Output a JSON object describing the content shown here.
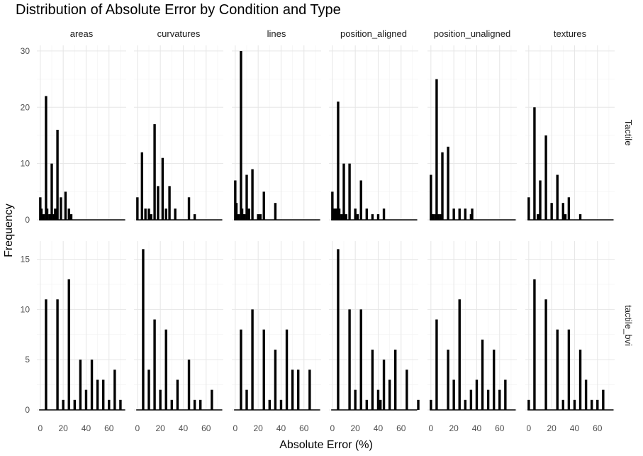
{
  "chart_data": {
    "type": "bar",
    "title": "Distribution of Absolute Error by Condition and Type",
    "xlabel": "Absolute Error (%)",
    "ylabel": "Frequency",
    "facet_columns": [
      "areas",
      "curvatures",
      "lines",
      "position_aligned",
      "position_unaligned",
      "textures"
    ],
    "facet_rows": [
      {
        "name": "Tactile",
        "ylim": [
          0,
          31
        ],
        "yticks": [
          0,
          10,
          20,
          30
        ]
      },
      {
        "name": "tactile_bvi",
        "ylim": [
          0,
          16.8
        ],
        "yticks": [
          0,
          5,
          10,
          15
        ]
      }
    ],
    "xlim": [
      -3,
      75
    ],
    "xticks": [
      0,
      20,
      40,
      60
    ],
    "grid": true,
    "panels": {
      "Tactile": {
        "areas": [
          [
            0,
            4
          ],
          [
            1,
            2
          ],
          [
            3,
            1
          ],
          [
            5,
            22
          ],
          [
            6,
            2
          ],
          [
            8,
            1
          ],
          [
            9,
            1
          ],
          [
            10,
            10
          ],
          [
            12,
            1
          ],
          [
            13,
            2
          ],
          [
            15,
            16
          ],
          [
            18,
            4
          ],
          [
            22,
            5
          ],
          [
            25,
            2
          ],
          [
            27,
            1
          ]
        ],
        "curvatures": [
          [
            0,
            4
          ],
          [
            4,
            12
          ],
          [
            7,
            2
          ],
          [
            10,
            2
          ],
          [
            12,
            1
          ],
          [
            15,
            17
          ],
          [
            18,
            6
          ],
          [
            22,
            11
          ],
          [
            25,
            2
          ],
          [
            28,
            6
          ],
          [
            33,
            2
          ],
          [
            45,
            4
          ],
          [
            50,
            1
          ]
        ],
        "lines": [
          [
            0,
            7
          ],
          [
            1,
            3
          ],
          [
            3,
            1
          ],
          [
            5,
            30
          ],
          [
            6,
            2
          ],
          [
            7,
            1
          ],
          [
            8,
            1
          ],
          [
            10,
            8
          ],
          [
            12,
            2
          ],
          [
            15,
            9
          ],
          [
            20,
            1
          ],
          [
            22,
            1
          ],
          [
            25,
            5
          ],
          [
            35,
            3
          ]
        ],
        "position_aligned": [
          [
            0,
            5
          ],
          [
            1,
            2
          ],
          [
            2,
            2
          ],
          [
            3,
            2
          ],
          [
            4,
            2
          ],
          [
            5,
            21
          ],
          [
            6,
            2
          ],
          [
            8,
            1
          ],
          [
            10,
            10
          ],
          [
            12,
            1
          ],
          [
            15,
            10
          ],
          [
            20,
            2
          ],
          [
            22,
            1
          ],
          [
            25,
            7
          ],
          [
            30,
            2
          ],
          [
            35,
            1
          ],
          [
            40,
            1
          ],
          [
            45,
            2
          ]
        ],
        "position_unaligned": [
          [
            0,
            8
          ],
          [
            1,
            1
          ],
          [
            2,
            1
          ],
          [
            4,
            1
          ],
          [
            5,
            25
          ],
          [
            6,
            1
          ],
          [
            8,
            1
          ],
          [
            10,
            12
          ],
          [
            15,
            13
          ],
          [
            20,
            2
          ],
          [
            25,
            2
          ],
          [
            30,
            2
          ],
          [
            35,
            1
          ],
          [
            36,
            2
          ]
        ],
        "textures": [
          [
            0,
            4
          ],
          [
            5,
            20
          ],
          [
            8,
            1
          ],
          [
            10,
            7
          ],
          [
            15,
            15
          ],
          [
            20,
            3
          ],
          [
            25,
            8
          ],
          [
            30,
            3
          ],
          [
            32,
            1
          ],
          [
            35,
            4
          ],
          [
            45,
            1
          ]
        ]
      },
      "tactile_bvi": {
        "areas": [
          [
            5,
            11
          ],
          [
            15,
            11
          ],
          [
            20,
            1
          ],
          [
            25,
            13
          ],
          [
            30,
            1
          ],
          [
            35,
            5
          ],
          [
            40,
            2
          ],
          [
            45,
            5
          ],
          [
            50,
            3
          ],
          [
            55,
            3
          ],
          [
            60,
            1
          ],
          [
            65,
            4
          ],
          [
            70,
            1
          ]
        ],
        "curvatures": [
          [
            5,
            16
          ],
          [
            10,
            4
          ],
          [
            15,
            9
          ],
          [
            20,
            2
          ],
          [
            25,
            8
          ],
          [
            30,
            1
          ],
          [
            35,
            3
          ],
          [
            45,
            5
          ],
          [
            50,
            1
          ],
          [
            55,
            1
          ],
          [
            65,
            2
          ]
        ],
        "lines": [
          [
            5,
            8
          ],
          [
            10,
            2
          ],
          [
            15,
            10
          ],
          [
            25,
            8
          ],
          [
            30,
            1
          ],
          [
            35,
            6
          ],
          [
            40,
            1
          ],
          [
            45,
            8
          ],
          [
            50,
            4
          ],
          [
            55,
            4
          ],
          [
            65,
            4
          ]
        ],
        "position_aligned": [
          [
            5,
            16
          ],
          [
            15,
            10
          ],
          [
            20,
            2
          ],
          [
            25,
            10
          ],
          [
            30,
            1
          ],
          [
            35,
            6
          ],
          [
            40,
            2
          ],
          [
            42,
            1
          ],
          [
            45,
            5
          ],
          [
            50,
            3
          ],
          [
            55,
            6
          ],
          [
            65,
            4
          ],
          [
            75,
            1
          ]
        ],
        "position_unaligned": [
          [
            0,
            1
          ],
          [
            5,
            9
          ],
          [
            15,
            6
          ],
          [
            20,
            3
          ],
          [
            25,
            11
          ],
          [
            30,
            1
          ],
          [
            35,
            2
          ],
          [
            40,
            3
          ],
          [
            45,
            7
          ],
          [
            50,
            2
          ],
          [
            55,
            6
          ],
          [
            60,
            2
          ],
          [
            65,
            3
          ]
        ],
        "textures": [
          [
            0,
            1
          ],
          [
            5,
            13
          ],
          [
            15,
            11
          ],
          [
            25,
            8
          ],
          [
            30,
            1
          ],
          [
            35,
            8
          ],
          [
            40,
            1
          ],
          [
            45,
            6
          ],
          [
            50,
            3
          ],
          [
            55,
            1
          ],
          [
            60,
            1
          ],
          [
            65,
            2
          ]
        ]
      }
    }
  }
}
